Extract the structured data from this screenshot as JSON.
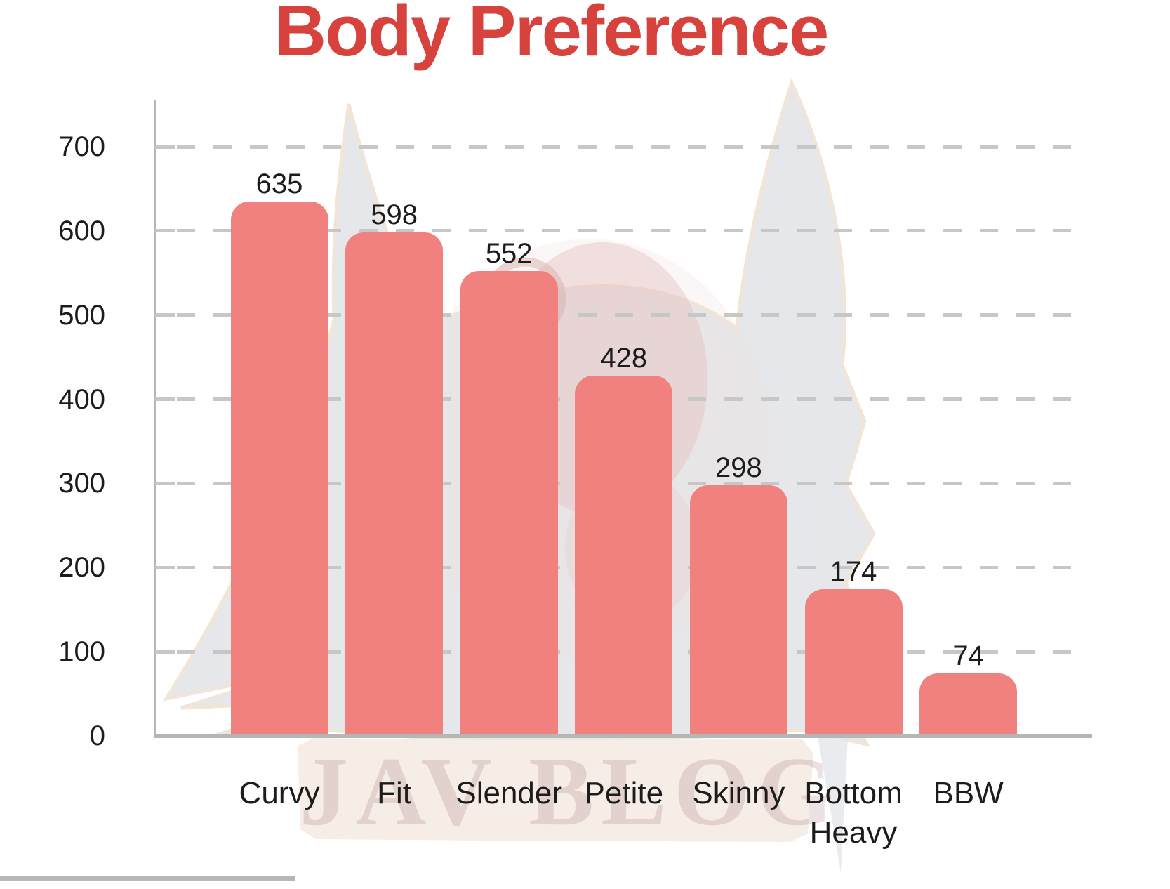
{
  "title": "Body Preference",
  "watermark": {
    "text": "JAV BLOG"
  },
  "colors": {
    "title": "#d8423d",
    "bar": "#f0817f",
    "axis": "#b5b6b6",
    "grid": "#c6c7c7",
    "text": "#1c1c1c",
    "banner": "#f6ede7",
    "watermark_text": "#7c3b42"
  },
  "chart_data": {
    "type": "bar",
    "title": "Body Preference",
    "categories": [
      "Curvy",
      "Fit",
      "Slender",
      "Petite",
      "Skinny",
      "Bottom Heavy",
      "BBW"
    ],
    "values": [
      635,
      598,
      552,
      428,
      298,
      174,
      74
    ],
    "xlabel": "",
    "ylabel": "",
    "ylim": [
      0,
      700
    ],
    "yticks": [
      0,
      100,
      200,
      300,
      400,
      500,
      600,
      700
    ],
    "grid": "horizontal-dashed",
    "legend": "none",
    "bar_value_labels": true
  }
}
